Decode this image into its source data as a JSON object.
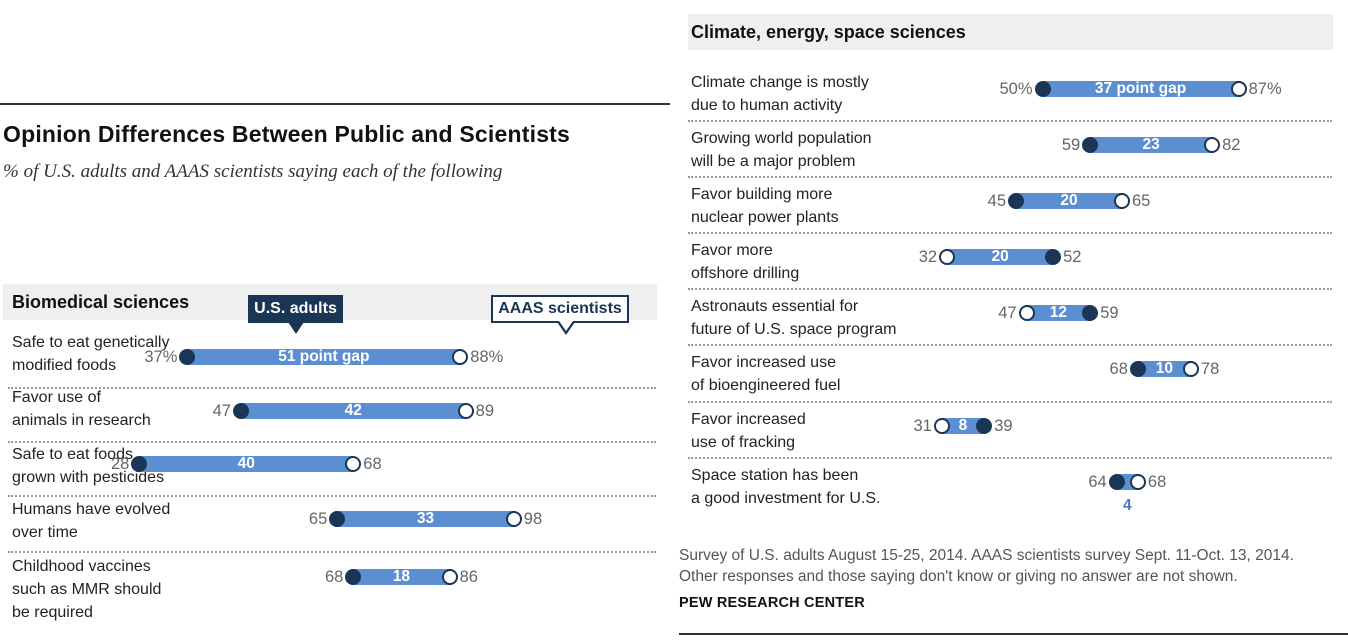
{
  "header": {
    "title": "Opinion Differences Between Public and Scientists",
    "subtitle": "% of U.S. adults and AAAS scientists saying each of the following"
  },
  "legend": {
    "adults": "U.S. adults",
    "scientists": "AAAS scientists"
  },
  "colors": {
    "bar": "#5b8fd2",
    "adults_dot": "#1b3557",
    "scientists_dot": "#ffffff",
    "section_bg": "#efeff0"
  },
  "footer": {
    "source_lines": [
      "Survey of U.S. adults August 15-25, 2014. AAAS scientists survey Sept. 11-Oct. 13, 2014.",
      "Other responses and those saying don't know or giving no answer are not shown."
    ],
    "org": "PEW RESEARCH CENTER"
  },
  "chart_data": [
    {
      "type": "dumbbell",
      "section": "Biomedical sciences",
      "series": [
        "U.S. adults",
        "AAAS scientists"
      ],
      "rows": [
        {
          "label_lines": [
            "Safe to eat genetically",
            "modified foods"
          ],
          "adults": 37,
          "scientists": 88,
          "gap": 51,
          "adults_text": "37%",
          "scientists_text": "88%",
          "gap_text": "51 point gap"
        },
        {
          "label_lines": [
            "Favor use of",
            "animals in research"
          ],
          "adults": 47,
          "scientists": 89,
          "gap": 42,
          "adults_text": "47",
          "scientists_text": "89",
          "gap_text": "42"
        },
        {
          "label_lines": [
            "Safe to eat foods",
            "grown with pesticides"
          ],
          "adults": 28,
          "scientists": 68,
          "gap": 40,
          "adults_text": "28",
          "scientists_text": "68",
          "gap_text": "40"
        },
        {
          "label_lines": [
            "Humans have evolved",
            "over time"
          ],
          "adults": 65,
          "scientists": 98,
          "gap": 33,
          "adults_text": "65",
          "scientists_text": "98",
          "gap_text": "33"
        },
        {
          "label_lines": [
            "Childhood vaccines",
            "such as MMR should",
            "be required"
          ],
          "adults": 68,
          "scientists": 86,
          "gap": 18,
          "adults_text": "68",
          "scientists_text": "86",
          "gap_text": "18"
        }
      ]
    },
    {
      "type": "dumbbell",
      "section": "Climate, energy, space sciences",
      "series": [
        "U.S. adults",
        "AAAS scientists"
      ],
      "rows": [
        {
          "label_lines": [
            "Climate change is mostly",
            "due to human activity"
          ],
          "adults": 50,
          "scientists": 87,
          "gap": 37,
          "adults_text": "50%",
          "scientists_text": "87%",
          "gap_text": "37 point gap"
        },
        {
          "label_lines": [
            "Growing world population",
            "will be a major problem"
          ],
          "adults": 59,
          "scientists": 82,
          "gap": 23,
          "adults_text": "59",
          "scientists_text": "82",
          "gap_text": "23"
        },
        {
          "label_lines": [
            "Favor building more",
            "nuclear power plants"
          ],
          "adults": 45,
          "scientists": 65,
          "gap": 20,
          "adults_text": "45",
          "scientists_text": "65",
          "gap_text": "20"
        },
        {
          "label_lines": [
            "Favor more",
            "offshore drilling"
          ],
          "adults": 52,
          "scientists": 32,
          "gap": 20,
          "adults_text": "52",
          "scientists_text": "32",
          "gap_text": "20"
        },
        {
          "label_lines": [
            "Astronauts essential for",
            "future of U.S. space program"
          ],
          "adults": 59,
          "scientists": 47,
          "gap": 12,
          "adults_text": "59",
          "scientists_text": "47",
          "gap_text": "12"
        },
        {
          "label_lines": [
            "Favor increased use",
            "of bioengineered fuel"
          ],
          "adults": 68,
          "scientists": 78,
          "gap": 10,
          "adults_text": "68",
          "scientists_text": "78",
          "gap_text": "10"
        },
        {
          "label_lines": [
            "Favor increased",
            "use of fracking"
          ],
          "adults": 39,
          "scientists": 31,
          "gap": 8,
          "adults_text": "39",
          "scientists_text": "31",
          "gap_text": "8"
        },
        {
          "label_lines": [
            "Space station has been",
            "a good investment for U.S."
          ],
          "adults": 64,
          "scientists": 68,
          "gap": 4,
          "adults_text": "64",
          "scientists_text": "68",
          "gap_text": "4"
        }
      ]
    }
  ]
}
